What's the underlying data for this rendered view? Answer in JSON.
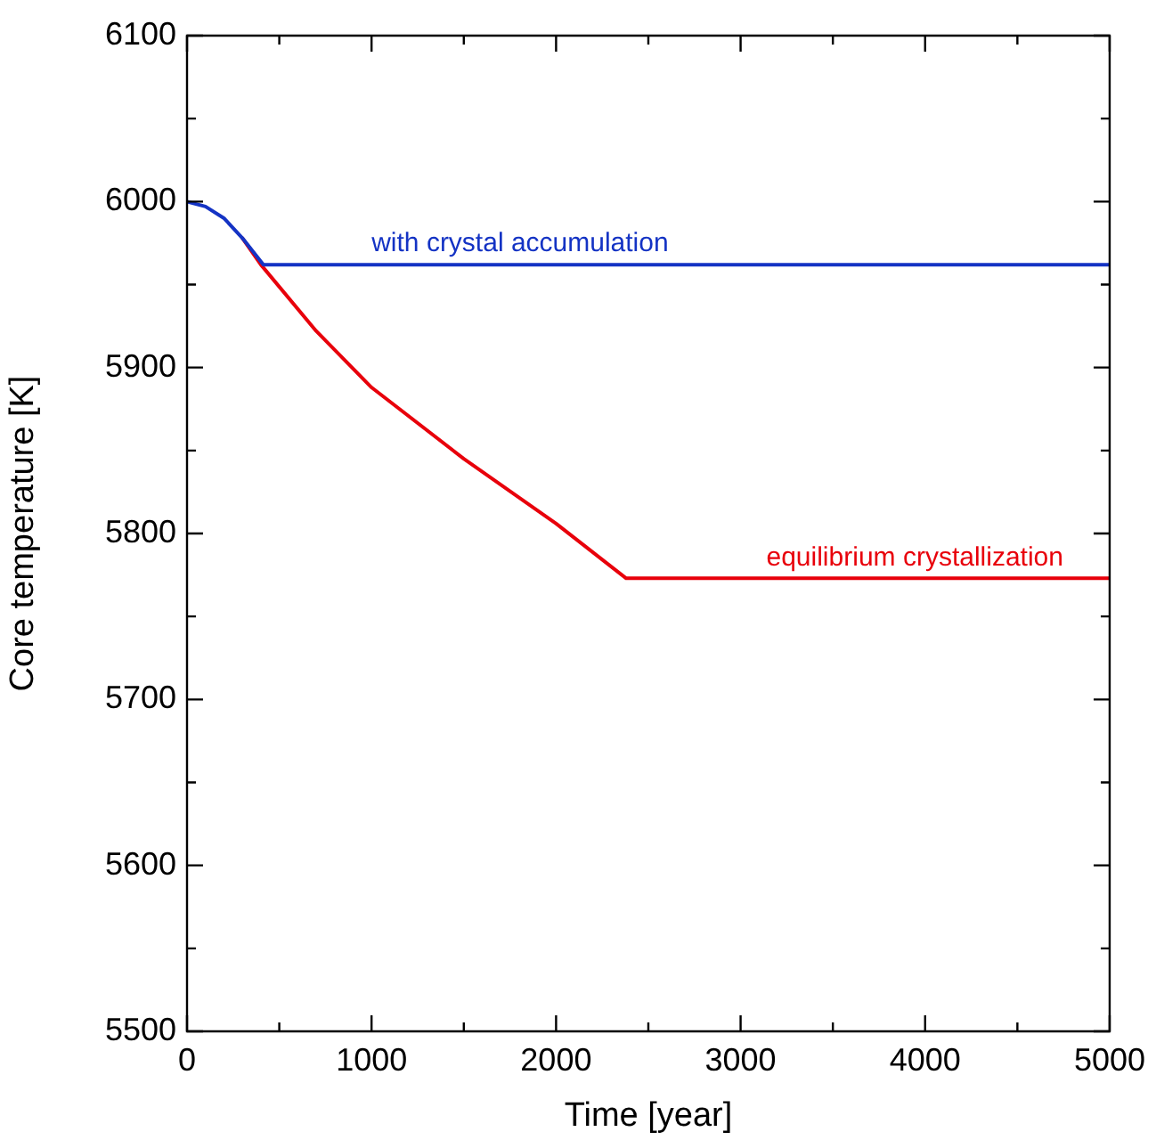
{
  "chart_data": {
    "type": "line",
    "xlabel": "Time [year]",
    "ylabel": "Core temperature [K]",
    "xlim": [
      0,
      5000
    ],
    "xticks": [
      0,
      1000,
      2000,
      3000,
      4000,
      5000
    ],
    "ylim": [
      5500,
      6100
    ],
    "yticks": [
      5500,
      5600,
      5700,
      5800,
      5900,
      6000,
      6100
    ],
    "grid": false,
    "legend": false,
    "marker": "none",
    "line_style": "solid",
    "series": [
      {
        "name": "equilibrium crystallization",
        "color": "#e8000b",
        "x": [
          300,
          400,
          700,
          1000,
          1500,
          2000,
          2380,
          5000
        ],
        "values": [
          5978,
          5962,
          5922,
          5888,
          5845,
          5806,
          5773,
          5773
        ]
      },
      {
        "name": "with crystal accumulation",
        "color": "#1433c4",
        "x": [
          0,
          100,
          200,
          300,
          414,
          5000
        ],
        "values": [
          6000,
          5997,
          5990,
          5978,
          5962,
          5962
        ]
      }
    ]
  }
}
